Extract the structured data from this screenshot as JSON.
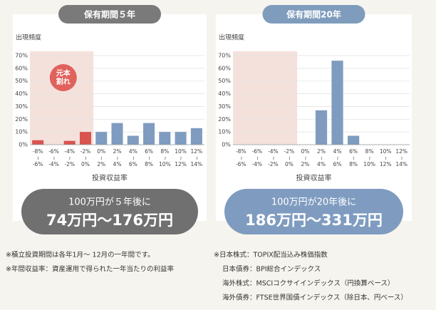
{
  "chart_data": [
    {
      "type": "bar",
      "header": "保有期間５年",
      "y_label": "出現頻度",
      "x_label": "投資収益率",
      "categories": [
        [
          "-8%",
          "-6%"
        ],
        [
          "-6%",
          "-4%"
        ],
        [
          "-4%",
          "-2%"
        ],
        [
          "-2%",
          "0%"
        ],
        [
          "0%",
          "2%"
        ],
        [
          "2%",
          "4%"
        ],
        [
          "4%",
          "6%"
        ],
        [
          "6%",
          "8%"
        ],
        [
          "8%",
          "10%"
        ],
        [
          "10%",
          "12%"
        ],
        [
          "12%",
          "14%"
        ]
      ],
      "values": [
        3.5,
        0,
        3,
        10,
        10,
        17,
        7,
        17,
        10,
        10,
        13
      ],
      "color": "#7f9cc0",
      "loss_color": "#d9534f",
      "header_color": "#7a7a7a",
      "summary_color": "#707070",
      "annotation": [
        "元本",
        "割れ"
      ],
      "ylim": [
        0,
        70
      ],
      "yticks": [
        {
          "value": 0,
          "label": "0%"
        },
        {
          "value": 10,
          "label": "10%"
        },
        {
          "value": 20,
          "label": "20%"
        },
        {
          "value": 30,
          "label": "30%"
        },
        {
          "value": 40,
          "label": "40%"
        },
        {
          "value": 50,
          "label": "50%"
        },
        {
          "value": 60,
          "label": "60%"
        },
        {
          "value": 70,
          "label": "70%"
        }
      ],
      "summary": [
        "100万円が５年後に",
        "74万円〜176万円"
      ]
    },
    {
      "type": "bar",
      "header": "保有期間20年",
      "y_label": "出現頻度",
      "x_label": "投資収益率",
      "categories": [
        [
          "-8%",
          "-6%"
        ],
        [
          "-6%",
          "-4%"
        ],
        [
          "-4%",
          "-2%"
        ],
        [
          "-2%",
          "0%"
        ],
        [
          "0%",
          "2%"
        ],
        [
          "2%",
          "4%"
        ],
        [
          "4%",
          "6%"
        ],
        [
          "6%",
          "8%"
        ],
        [
          "8%",
          "10%"
        ],
        [
          "10%",
          "12%"
        ],
        [
          "12%",
          "14%"
        ]
      ],
      "values": [
        0,
        0,
        0,
        0,
        0,
        27,
        66,
        7,
        0,
        0,
        0
      ],
      "color": "#7f9cc0",
      "loss_color": "#d9534f",
      "header_color": "#7f9cbc",
      "summary_color": "#7f9cc0",
      "ylim": [
        0,
        70
      ],
      "yticks": [
        {
          "value": 0,
          "label": "0%"
        },
        {
          "value": 10,
          "label": "10%"
        },
        {
          "value": 20,
          "label": "20%"
        },
        {
          "value": 30,
          "label": "30%"
        },
        {
          "value": 40,
          "label": "40%"
        },
        {
          "value": 50,
          "label": "50%"
        },
        {
          "value": 60,
          "label": "60%"
        },
        {
          "value": 70,
          "label": "70%"
        }
      ],
      "summary": [
        "100万円が20年後に",
        "186万円〜331万円"
      ]
    }
  ],
  "notes_left": [
    "※積立投資期間は各年1月〜 12月の一年間です。",
    "※年間収益率：資産運用で得られた一年当たりの利益率"
  ],
  "notes_right": [
    "※日本株式：TOPIX配当込み株価指数",
    "日本債券：BPI総合インデックス",
    "海外株式：MSCIコクサイインデックス（円換算ベース）",
    "海外債券：FTSE世界国債インデックス（除日本、円ベース）"
  ]
}
